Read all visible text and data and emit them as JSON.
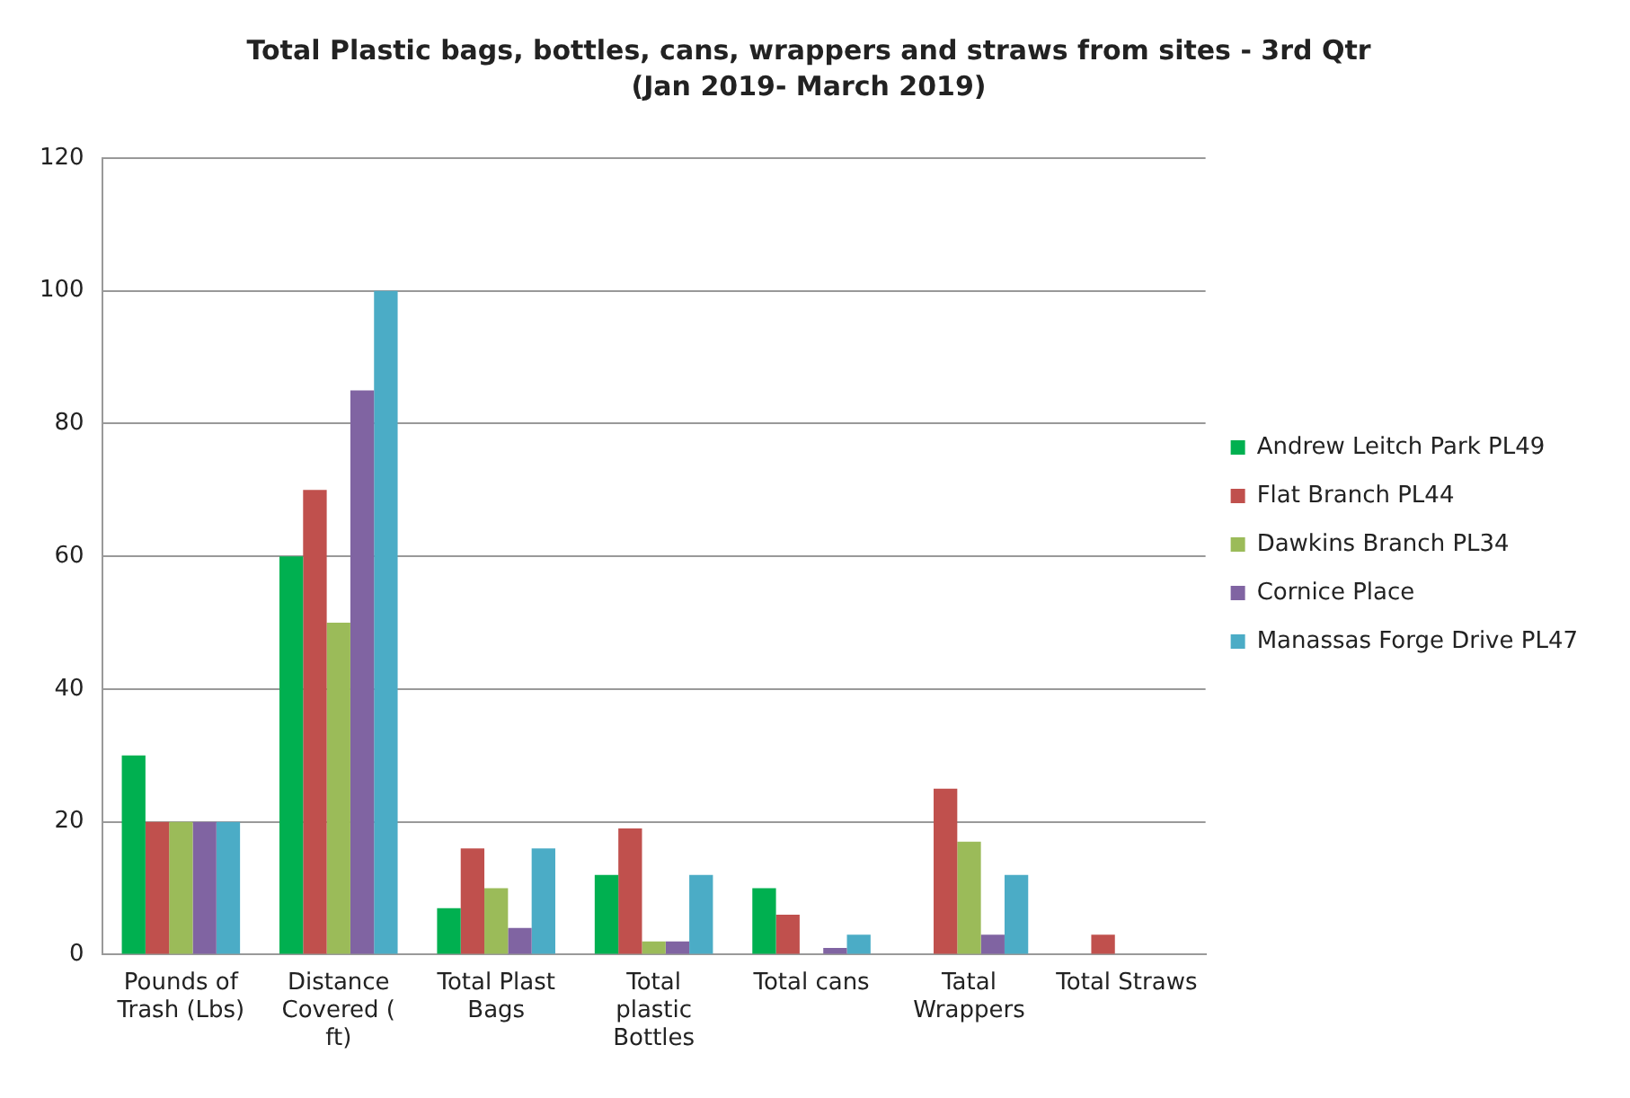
{
  "chart_data": {
    "type": "bar",
    "title": "Total Plastic bags, bottles, cans, wrappers and straws from sites - 3rd Qtr",
    "subtitle": "(Jan 2019- March 2019)",
    "categories": [
      "Pounds of Trash (Lbs)",
      "Distance Covered ( ft)",
      "Total Plast Bags",
      "Total plastic Bottles",
      "Total cans",
      "Tatal Wrappers",
      "Total Straws"
    ],
    "series": [
      {
        "name": "Andrew Leitch Park PL49",
        "color": "#00b050",
        "values": [
          30,
          60,
          7,
          12,
          10,
          0,
          0
        ]
      },
      {
        "name": "Flat Branch PL44",
        "color": "#c0504d",
        "values": [
          20,
          70,
          16,
          19,
          6,
          25,
          3
        ]
      },
      {
        "name": "Dawkins Branch PL34",
        "color": "#9bbb59",
        "values": [
          20,
          50,
          10,
          2,
          0,
          17,
          0
        ]
      },
      {
        "name": "Cornice Place",
        "color": "#8064a2",
        "values": [
          20,
          85,
          4,
          2,
          1,
          3,
          0
        ]
      },
      {
        "name": "Manassas Forge Drive PL47",
        "color": "#4bacc6",
        "values": [
          20,
          100,
          16,
          12,
          3,
          12,
          0
        ]
      }
    ],
    "ylim": [
      0,
      120
    ],
    "yticks": [
      0,
      20,
      40,
      60,
      80,
      100,
      120
    ],
    "grid": "y",
    "legend": "right"
  }
}
